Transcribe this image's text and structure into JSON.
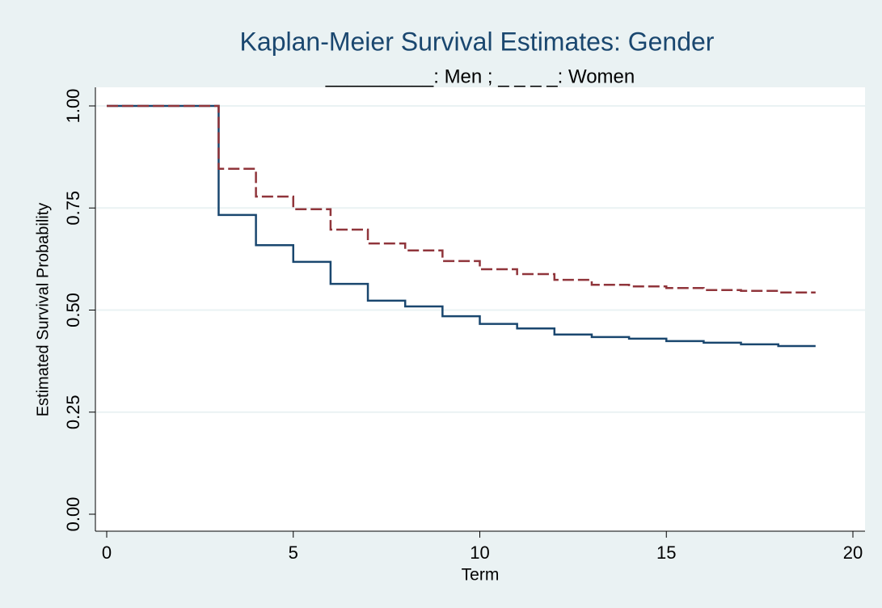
{
  "chart_data": {
    "type": "step",
    "title": "Kaplan-Meier Survival Estimates: Gender",
    "subtitle": "__________: Men ; _ _ _ _: Women",
    "x_label": "Term",
    "y_label": "Estimated Survival Probability",
    "xlim": [
      0,
      20
    ],
    "xticks": [
      0,
      5,
      10,
      15,
      20
    ],
    "ylim": [
      0,
      1
    ],
    "yticks": [
      {
        "value": 0,
        "label": "0.00"
      },
      {
        "value": 0.25,
        "label": "0.25"
      },
      {
        "value": 0.5,
        "label": "0.50"
      },
      {
        "value": 0.75,
        "label": "0.75"
      },
      {
        "value": 1,
        "label": "1.00"
      }
    ],
    "grid": true,
    "series": [
      {
        "name": "Men",
        "color": "#1a476f",
        "line_style": "solid",
        "x": [
          0,
          3,
          4,
          5,
          6,
          7,
          8,
          9,
          10,
          11,
          12,
          13,
          14,
          15,
          16,
          17,
          18,
          19
        ],
        "values": [
          1.0,
          0.733,
          0.659,
          0.618,
          0.564,
          0.523,
          0.509,
          0.485,
          0.466,
          0.455,
          0.44,
          0.434,
          0.43,
          0.424,
          0.42,
          0.416,
          0.412,
          0.412
        ]
      },
      {
        "name": "Women",
        "color": "#90353b",
        "line_style": "dashed",
        "x": [
          0,
          3,
          4,
          5,
          6,
          7,
          8,
          9,
          10,
          11,
          12,
          13,
          14,
          15,
          16,
          17,
          18,
          19
        ],
        "values": [
          1.0,
          0.846,
          0.778,
          0.747,
          0.697,
          0.663,
          0.646,
          0.62,
          0.6,
          0.588,
          0.574,
          0.562,
          0.558,
          0.554,
          0.549,
          0.547,
          0.543,
          0.543
        ]
      }
    ]
  }
}
